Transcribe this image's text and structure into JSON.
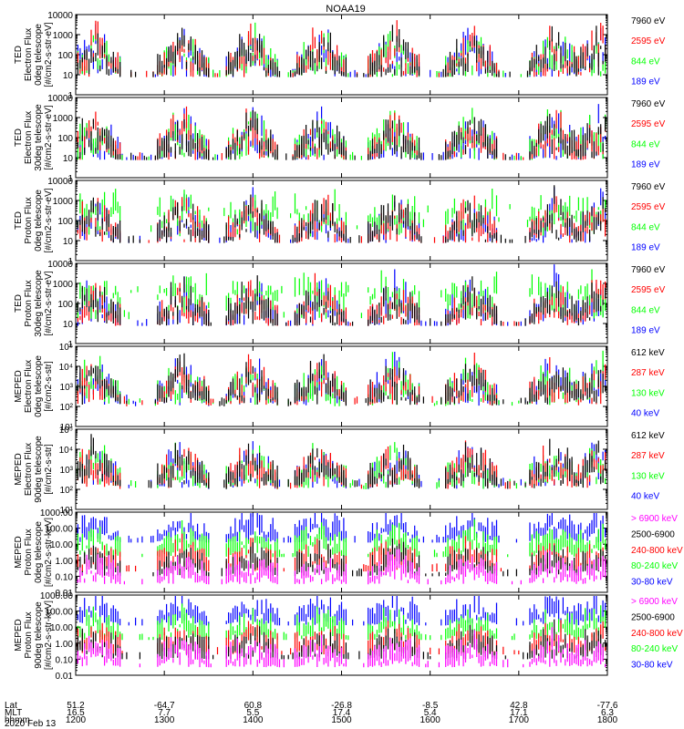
{
  "title": "NOAA19",
  "date_label": "2020 Feb 13",
  "axis_rows": {
    "labels": [
      "Lat",
      "MLT",
      "hhmm"
    ],
    "lat": [
      "51.2",
      "-64.7",
      "60.8",
      "-26.8",
      "-8.5",
      "42.8",
      "-77.6"
    ],
    "mlt": [
      "16.5",
      "7.7",
      "5.5",
      "17.4",
      "5.4",
      "17.1",
      "6.3"
    ],
    "hhmm": [
      "1200",
      "1300",
      "1400",
      "1500",
      "1600",
      "1700",
      "1800"
    ]
  },
  "colors": {
    "black": "#000000",
    "red": "#ff0000",
    "green": "#00ff00",
    "blue": "#0000ff",
    "magenta": "#ff00ff"
  },
  "chart_data": [
    {
      "type": "line",
      "ylabel": [
        "TED",
        "Electron Flux",
        "0deg telescope",
        "[#/cm2-s-str-eV]"
      ],
      "yscale": "log",
      "ylim": [
        1,
        10000
      ],
      "yticks": [
        "1",
        "10",
        "100",
        "1000",
        "10000"
      ],
      "legend": [
        {
          "label": "7960 eV",
          "color": "#000000"
        },
        {
          "label": "2595 eV",
          "color": "#ff0000"
        },
        {
          "label": "844 eV",
          "color": "#00ff00"
        },
        {
          "label": "189 eV",
          "color": "#0000ff"
        }
      ],
      "x": [
        "1200",
        "1300",
        "1400",
        "1500",
        "1600",
        "1700",
        "1800"
      ]
    },
    {
      "type": "line",
      "ylabel": [
        "TED",
        "Electron Flux",
        "30deg telescope",
        "[#/cm2-s-str-eV]"
      ],
      "yscale": "log",
      "ylim": [
        1,
        10000
      ],
      "yticks": [
        "1",
        "10",
        "100",
        "1000",
        "10000"
      ],
      "legend": [
        {
          "label": "7960 eV",
          "color": "#000000"
        },
        {
          "label": "2595 eV",
          "color": "#ff0000"
        },
        {
          "label": "844 eV",
          "color": "#00ff00"
        },
        {
          "label": "189 eV",
          "color": "#0000ff"
        }
      ],
      "x": [
        "1200",
        "1300",
        "1400",
        "1500",
        "1600",
        "1700",
        "1800"
      ]
    },
    {
      "type": "line",
      "ylabel": [
        "TED",
        "Proton Flux",
        "0deg telescope",
        "[#/cm2-s-str-eV]"
      ],
      "yscale": "log",
      "ylim": [
        1,
        10000
      ],
      "yticks": [
        "1",
        "10",
        "100",
        "1000",
        "10000"
      ],
      "legend": [
        {
          "label": "7960 eV",
          "color": "#000000"
        },
        {
          "label": "2595 eV",
          "color": "#ff0000"
        },
        {
          "label": "844 eV",
          "color": "#00ff00"
        },
        {
          "label": "189 eV",
          "color": "#0000ff"
        }
      ],
      "x": [
        "1200",
        "1300",
        "1400",
        "1500",
        "1600",
        "1700",
        "1800"
      ]
    },
    {
      "type": "line",
      "ylabel": [
        "TED",
        "Proton Flux",
        "30deg telescope",
        "[#/cm2-s-str-eV]"
      ],
      "yscale": "log",
      "ylim": [
        1,
        10000
      ],
      "yticks": [
        "1",
        "10",
        "100",
        "1000",
        "10000"
      ],
      "legend": [
        {
          "label": "7960 eV",
          "color": "#000000"
        },
        {
          "label": "2595 eV",
          "color": "#ff0000"
        },
        {
          "label": "844 eV",
          "color": "#00ff00"
        },
        {
          "label": "189 eV",
          "color": "#0000ff"
        }
      ],
      "x": [
        "1200",
        "1300",
        "1400",
        "1500",
        "1600",
        "1700",
        "1800"
      ]
    },
    {
      "type": "line",
      "ylabel": [
        "MEPED",
        "Electron Flux",
        "0deg telescope",
        "[#/cm2-s-str]"
      ],
      "yscale": "log",
      "ylim": [
        10,
        100000
      ],
      "yticks": [
        "10¹",
        "10²",
        "10³",
        "10⁴",
        "10⁵"
      ],
      "legend": [
        {
          "label": "612 keV",
          "color": "#000000"
        },
        {
          "label": "287 keV",
          "color": "#ff0000"
        },
        {
          "label": "130 keV",
          "color": "#00ff00"
        },
        {
          "label": "40 keV",
          "color": "#0000ff"
        }
      ],
      "x": [
        "1200",
        "1300",
        "1400",
        "1500",
        "1600",
        "1700",
        "1800"
      ]
    },
    {
      "type": "line",
      "ylabel": [
        "MEPED",
        "Electron Flux",
        "90deg telescope",
        "[#/cm2-s-str]"
      ],
      "yscale": "log",
      "ylim": [
        10,
        100000
      ],
      "yticks": [
        "10¹",
        "10²",
        "10³",
        "10⁴",
        "10⁵"
      ],
      "legend": [
        {
          "label": "612 keV",
          "color": "#000000"
        },
        {
          "label": "287 keV",
          "color": "#ff0000"
        },
        {
          "label": "130 keV",
          "color": "#00ff00"
        },
        {
          "label": "40 keV",
          "color": "#0000ff"
        }
      ],
      "x": [
        "1200",
        "1300",
        "1400",
        "1500",
        "1600",
        "1700",
        "1800"
      ]
    },
    {
      "type": "line",
      "ylabel": [
        "MEPED",
        "Proton Flux",
        "0deg telescope",
        "[#/cm2-s-str-keV]"
      ],
      "yscale": "log",
      "ylim": [
        0.01,
        1000
      ],
      "yticks": [
        "0.01",
        "0.10",
        "1.00",
        "10.00",
        "100.00",
        "1000.00"
      ],
      "legend": [
        {
          "label": "> 6900 keV",
          "color": "#ff00ff"
        },
        {
          "label": "2500-6900",
          "color": "#000000"
        },
        {
          "label": "240-800 keV",
          "color": "#ff0000"
        },
        {
          "label": "80-240 keV",
          "color": "#00ff00"
        },
        {
          "label": "30-80 keV",
          "color": "#0000ff"
        }
      ],
      "x": [
        "1200",
        "1300",
        "1400",
        "1500",
        "1600",
        "1700",
        "1800"
      ]
    },
    {
      "type": "line",
      "ylabel": [
        "MEPED",
        "Proton Flux",
        "90deg telescope",
        "[#/cm2-s-str-keV]"
      ],
      "yscale": "log",
      "ylim": [
        0.01,
        1000
      ],
      "yticks": [
        "0.01",
        "0.10",
        "1.00",
        "10.00",
        "100.00",
        "1000.00"
      ],
      "legend": [
        {
          "label": "> 6900 keV",
          "color": "#ff00ff"
        },
        {
          "label": "2500-6900",
          "color": "#000000"
        },
        {
          "label": "240-800 keV",
          "color": "#ff0000"
        },
        {
          "label": "80-240 keV",
          "color": "#00ff00"
        },
        {
          "label": "30-80 keV",
          "color": "#0000ff"
        }
      ],
      "x": [
        "1200",
        "1300",
        "1400",
        "1500",
        "1600",
        "1700",
        "1800"
      ]
    }
  ]
}
